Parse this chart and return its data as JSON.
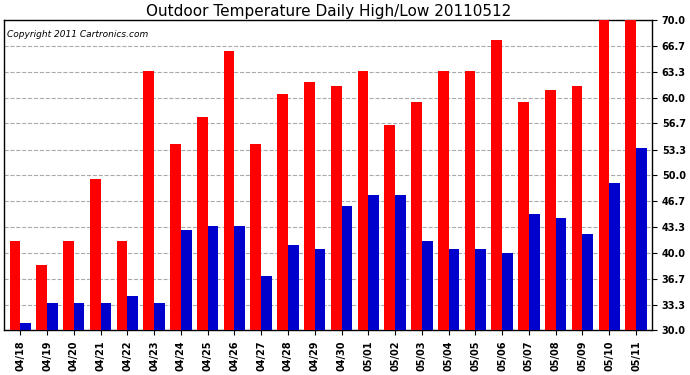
{
  "title": "Outdoor Temperature Daily High/Low 20110512",
  "copyright": "Copyright 2011 Cartronics.com",
  "dates": [
    "04/18",
    "04/19",
    "04/20",
    "04/21",
    "04/22",
    "04/23",
    "04/24",
    "04/25",
    "04/26",
    "04/27",
    "04/28",
    "04/29",
    "04/30",
    "05/01",
    "05/02",
    "05/03",
    "05/04",
    "05/05",
    "05/06",
    "05/07",
    "05/08",
    "05/09",
    "05/10",
    "05/11"
  ],
  "highs": [
    41.5,
    38.5,
    41.5,
    49.5,
    41.5,
    63.5,
    54.0,
    57.5,
    66.0,
    54.0,
    60.5,
    62.0,
    61.5,
    63.5,
    56.5,
    59.5,
    63.5,
    63.5,
    67.5,
    59.5,
    61.0,
    61.5,
    70.0,
    70.0
  ],
  "lows": [
    31.0,
    33.5,
    33.5,
    33.5,
    34.5,
    33.5,
    43.0,
    43.5,
    43.5,
    37.0,
    41.0,
    40.5,
    46.0,
    47.5,
    47.5,
    41.5,
    40.5,
    40.5,
    40.0,
    45.0,
    44.5,
    42.5,
    49.0,
    53.5
  ],
  "high_color": "#ff0000",
  "low_color": "#0000cc",
  "ymin": 30.0,
  "ylim": [
    30.0,
    70.0
  ],
  "yticks": [
    30.0,
    33.3,
    36.7,
    40.0,
    43.3,
    46.7,
    50.0,
    53.3,
    56.7,
    60.0,
    63.3,
    66.7,
    70.0
  ],
  "ytick_labels": [
    "30.0",
    "33.3",
    "36.7",
    "40.0",
    "43.3",
    "46.7",
    "50.0",
    "53.3",
    "56.7",
    "60.0",
    "63.3",
    "66.7",
    "70.0"
  ],
  "background_color": "#ffffff",
  "grid_color": "#aaaaaa",
  "title_fontsize": 11,
  "tick_fontsize": 7,
  "copyright_fontsize": 6.5
}
